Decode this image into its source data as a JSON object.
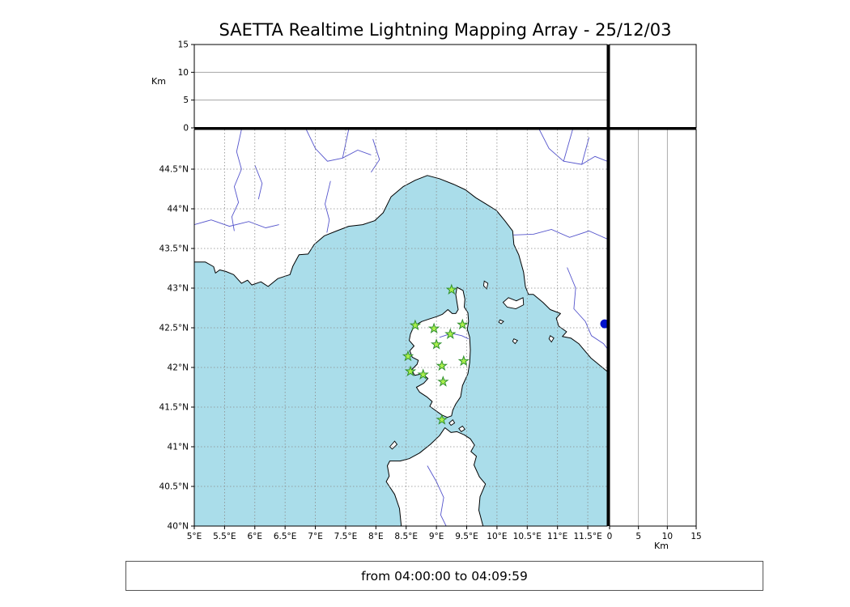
{
  "title": "SAETTA Realtime Lightning Mapping Array - 25/12/03",
  "footer": {
    "text": "from 04:00:00 to 04:09:59"
  },
  "colors": {
    "sea": "#aaddea",
    "land": "#ffffff",
    "coast": "#000000",
    "river": "#5555cc",
    "grid": "#8a8a8a",
    "panel_grid": "#999999",
    "frame": "#000000",
    "station_fill": "#aaf04c",
    "station_edge": "#2f8f2f",
    "event_dot": "#0013cc"
  },
  "map": {
    "lon_min": 5.0,
    "lon_max": 11.82,
    "lat_min": 40.0,
    "lat_max": 45.0,
    "lon_ticks": [
      [
        5,
        "5°E"
      ],
      [
        5.5,
        "5.5°E"
      ],
      [
        6,
        "6°E"
      ],
      [
        6.5,
        "6.5°E"
      ],
      [
        7,
        "7°E"
      ],
      [
        7.5,
        "7.5°E"
      ],
      [
        8,
        "8°E"
      ],
      [
        8.5,
        "8.5°E"
      ],
      [
        9,
        "9°E"
      ],
      [
        9.5,
        "9.5°E"
      ],
      [
        10,
        "10°E"
      ],
      [
        10.5,
        "10.5°E"
      ],
      [
        11,
        "11°E"
      ],
      [
        11.5,
        "11.5°E"
      ]
    ],
    "lat_ticks": [
      [
        40,
        "40°N"
      ],
      [
        40.5,
        "40.5°N"
      ],
      [
        41,
        "41°N"
      ],
      [
        41.5,
        "41.5°N"
      ],
      [
        42,
        "42°N"
      ],
      [
        42.5,
        "42.5°N"
      ],
      [
        43,
        "43°N"
      ],
      [
        43.5,
        "43.5°N"
      ],
      [
        44,
        "44°N"
      ],
      [
        44.5,
        "44.5°N"
      ]
    ]
  },
  "altitude_axis": {
    "label": "Km",
    "max": 15,
    "ticks": [
      [
        0,
        "0"
      ],
      [
        5,
        "5"
      ],
      [
        10,
        "10"
      ],
      [
        15,
        "15"
      ]
    ],
    "gridlines": [
      5,
      10
    ]
  },
  "stations": [
    [
      9.25,
      42.98
    ],
    [
      8.65,
      42.53
    ],
    [
      8.96,
      42.49
    ],
    [
      9.43,
      42.54
    ],
    [
      9.23,
      42.42
    ],
    [
      9.0,
      42.29
    ],
    [
      8.53,
      42.14
    ],
    [
      9.45,
      42.08
    ],
    [
      8.57,
      41.95
    ],
    [
      8.78,
      41.91
    ],
    [
      9.09,
      42.02
    ],
    [
      9.11,
      41.82
    ],
    [
      9.09,
      41.34
    ]
  ],
  "event_dot": {
    "lon": 11.78,
    "lat": 42.55
  },
  "geo": {
    "mainland": [
      [
        5.0,
        45.0
      ],
      [
        11.82,
        45.0
      ],
      [
        11.82,
        41.95
      ],
      [
        11.55,
        42.12
      ],
      [
        11.35,
        42.3
      ],
      [
        11.22,
        42.37
      ],
      [
        11.08,
        42.39
      ],
      [
        11.15,
        42.45
      ],
      [
        11.02,
        42.52
      ],
      [
        10.98,
        42.62
      ],
      [
        11.05,
        42.68
      ],
      [
        10.88,
        42.73
      ],
      [
        10.76,
        42.82
      ],
      [
        10.6,
        42.92
      ],
      [
        10.52,
        42.92
      ],
      [
        10.47,
        43.02
      ],
      [
        10.44,
        43.2
      ],
      [
        10.36,
        43.42
      ],
      [
        10.28,
        43.55
      ],
      [
        10.26,
        43.72
      ],
      [
        10.13,
        43.85
      ],
      [
        9.99,
        43.98
      ],
      [
        9.82,
        44.06
      ],
      [
        9.65,
        44.14
      ],
      [
        9.48,
        44.24
      ],
      [
        9.28,
        44.31
      ],
      [
        9.05,
        44.38
      ],
      [
        8.85,
        44.42
      ],
      [
        8.65,
        44.36
      ],
      [
        8.45,
        44.28
      ],
      [
        8.25,
        44.15
      ],
      [
        8.12,
        43.95
      ],
      [
        7.98,
        43.85
      ],
      [
        7.78,
        43.8
      ],
      [
        7.55,
        43.78
      ],
      [
        7.35,
        43.72
      ],
      [
        7.15,
        43.66
      ],
      [
        6.98,
        43.55
      ],
      [
        6.88,
        43.43
      ],
      [
        6.73,
        43.42
      ],
      [
        6.63,
        43.28
      ],
      [
        6.58,
        43.17
      ],
      [
        6.38,
        43.12
      ],
      [
        6.22,
        43.02
      ],
      [
        6.1,
        43.08
      ],
      [
        5.95,
        43.04
      ],
      [
        5.88,
        43.1
      ],
      [
        5.78,
        43.06
      ],
      [
        5.65,
        43.17
      ],
      [
        5.52,
        43.21
      ],
      [
        5.42,
        43.23
      ],
      [
        5.35,
        43.19
      ],
      [
        5.32,
        43.27
      ],
      [
        5.18,
        43.33
      ],
      [
        5.0,
        43.33
      ]
    ],
    "corsica": [
      [
        9.34,
        43.01
      ],
      [
        9.44,
        42.97
      ],
      [
        9.47,
        42.86
      ],
      [
        9.46,
        42.76
      ],
      [
        9.52,
        42.69
      ],
      [
        9.53,
        42.58
      ],
      [
        9.51,
        42.48
      ],
      [
        9.55,
        42.38
      ],
      [
        9.56,
        42.22
      ],
      [
        9.55,
        42.06
      ],
      [
        9.52,
        41.92
      ],
      [
        9.43,
        41.77
      ],
      [
        9.4,
        41.63
      ],
      [
        9.32,
        41.54
      ],
      [
        9.27,
        41.46
      ],
      [
        9.25,
        41.39
      ],
      [
        9.18,
        41.37
      ],
      [
        9.09,
        41.4
      ],
      [
        8.98,
        41.46
      ],
      [
        8.89,
        41.51
      ],
      [
        8.93,
        41.57
      ],
      [
        8.84,
        41.63
      ],
      [
        8.72,
        41.69
      ],
      [
        8.67,
        41.75
      ],
      [
        8.79,
        41.8
      ],
      [
        8.86,
        41.86
      ],
      [
        8.77,
        41.92
      ],
      [
        8.64,
        41.9
      ],
      [
        8.59,
        41.97
      ],
      [
        8.68,
        42.04
      ],
      [
        8.7,
        42.09
      ],
      [
        8.6,
        42.13
      ],
      [
        8.56,
        42.21
      ],
      [
        8.63,
        42.27
      ],
      [
        8.55,
        42.34
      ],
      [
        8.57,
        42.42
      ],
      [
        8.61,
        42.49
      ],
      [
        8.67,
        42.54
      ],
      [
        8.76,
        42.58
      ],
      [
        8.88,
        42.61
      ],
      [
        9.0,
        42.64
      ],
      [
        9.1,
        42.67
      ],
      [
        9.19,
        42.73
      ],
      [
        9.26,
        42.68
      ],
      [
        9.32,
        42.68
      ],
      [
        9.36,
        42.73
      ],
      [
        9.34,
        42.82
      ],
      [
        9.32,
        42.92
      ]
    ],
    "sardinia": [
      [
        8.42,
        40.0
      ],
      [
        8.39,
        40.22
      ],
      [
        8.31,
        40.4
      ],
      [
        8.17,
        40.56
      ],
      [
        8.22,
        40.63
      ],
      [
        8.19,
        40.76
      ],
      [
        8.23,
        40.82
      ],
      [
        8.4,
        40.82
      ],
      [
        8.55,
        40.85
      ],
      [
        8.72,
        40.92
      ],
      [
        8.9,
        41.03
      ],
      [
        9.05,
        41.14
      ],
      [
        9.14,
        41.24
      ],
      [
        9.24,
        41.18
      ],
      [
        9.34,
        41.19
      ],
      [
        9.46,
        41.15
      ],
      [
        9.56,
        41.1
      ],
      [
        9.63,
        41.02
      ],
      [
        9.57,
        40.94
      ],
      [
        9.66,
        40.88
      ],
      [
        9.62,
        40.77
      ],
      [
        9.71,
        40.62
      ],
      [
        9.81,
        40.53
      ],
      [
        9.72,
        40.37
      ],
      [
        9.7,
        40.2
      ],
      [
        9.77,
        40.0
      ]
    ],
    "islands": [
      [
        [
          8.23,
          41.0
        ],
        [
          8.31,
          41.07
        ],
        [
          8.35,
          41.03
        ],
        [
          8.27,
          40.97
        ]
      ],
      [
        [
          9.37,
          41.23
        ],
        [
          9.43,
          41.26
        ],
        [
          9.47,
          41.22
        ],
        [
          9.41,
          41.19
        ]
      ],
      [
        [
          9.21,
          41.3
        ],
        [
          9.27,
          41.34
        ],
        [
          9.3,
          41.3
        ],
        [
          9.24,
          41.27
        ]
      ],
      [
        [
          10.1,
          42.82
        ],
        [
          10.19,
          42.88
        ],
        [
          10.32,
          42.84
        ],
        [
          10.43,
          42.88
        ],
        [
          10.44,
          42.79
        ],
        [
          10.31,
          42.74
        ],
        [
          10.17,
          42.76
        ]
      ],
      [
        [
          9.79,
          43.09
        ],
        [
          9.85,
          43.06
        ],
        [
          9.83,
          42.99
        ],
        [
          9.78,
          43.03
        ]
      ],
      [
        [
          10.05,
          42.6
        ],
        [
          10.11,
          42.58
        ],
        [
          10.07,
          42.55
        ],
        [
          10.03,
          42.57
        ]
      ],
      [
        [
          10.28,
          42.36
        ],
        [
          10.34,
          42.34
        ],
        [
          10.3,
          42.3
        ],
        [
          10.26,
          42.33
        ]
      ],
      [
        [
          10.88,
          42.4
        ],
        [
          10.94,
          42.37
        ],
        [
          10.9,
          42.32
        ],
        [
          10.86,
          42.36
        ]
      ]
    ],
    "rivers": [
      [
        [
          5.78,
          45.0
        ],
        [
          5.7,
          44.72
        ],
        [
          5.78,
          44.5
        ],
        [
          5.66,
          44.28
        ],
        [
          5.73,
          44.08
        ],
        [
          5.62,
          43.9
        ],
        [
          5.66,
          43.72
        ]
      ],
      [
        [
          5.0,
          43.8
        ],
        [
          5.28,
          43.86
        ],
        [
          5.58,
          43.78
        ],
        [
          5.9,
          43.84
        ],
        [
          6.18,
          43.76
        ],
        [
          6.4,
          43.8
        ]
      ],
      [
        [
          6.0,
          44.55
        ],
        [
          6.12,
          44.32
        ],
        [
          6.06,
          44.12
        ]
      ],
      [
        [
          6.85,
          45.0
        ],
        [
          7.0,
          44.76
        ],
        [
          7.2,
          44.6
        ],
        [
          7.45,
          44.64
        ],
        [
          7.7,
          44.74
        ],
        [
          7.92,
          44.68
        ]
      ],
      [
        [
          7.55,
          45.0
        ],
        [
          7.45,
          44.64
        ]
      ],
      [
        [
          7.25,
          44.35
        ],
        [
          7.16,
          44.06
        ],
        [
          7.23,
          43.86
        ],
        [
          7.19,
          43.7
        ]
      ],
      [
        [
          7.95,
          44.88
        ],
        [
          8.06,
          44.62
        ],
        [
          7.92,
          44.46
        ]
      ],
      [
        [
          10.7,
          45.0
        ],
        [
          10.86,
          44.76
        ],
        [
          11.1,
          44.6
        ],
        [
          11.4,
          44.56
        ],
        [
          11.62,
          44.66
        ],
        [
          11.82,
          44.6
        ]
      ],
      [
        [
          11.25,
          45.0
        ],
        [
          11.1,
          44.6
        ]
      ],
      [
        [
          11.52,
          44.9
        ],
        [
          11.4,
          44.56
        ]
      ],
      [
        [
          11.82,
          43.62
        ],
        [
          11.52,
          43.72
        ],
        [
          11.2,
          43.64
        ],
        [
          10.9,
          43.74
        ],
        [
          10.6,
          43.68
        ],
        [
          10.27,
          43.67
        ]
      ],
      [
        [
          11.16,
          43.26
        ],
        [
          11.3,
          43.0
        ],
        [
          11.27,
          42.74
        ],
        [
          11.46,
          42.58
        ],
        [
          11.56,
          42.4
        ],
        [
          11.76,
          42.3
        ],
        [
          11.82,
          42.24
        ]
      ],
      [
        [
          8.85,
          40.76
        ],
        [
          9.0,
          40.56
        ],
        [
          9.12,
          40.36
        ],
        [
          9.07,
          40.14
        ],
        [
          9.16,
          40.0
        ]
      ],
      [
        [
          9.05,
          42.38
        ],
        [
          9.25,
          42.43
        ],
        [
          9.42,
          42.4
        ],
        [
          9.53,
          42.36
        ]
      ]
    ]
  }
}
